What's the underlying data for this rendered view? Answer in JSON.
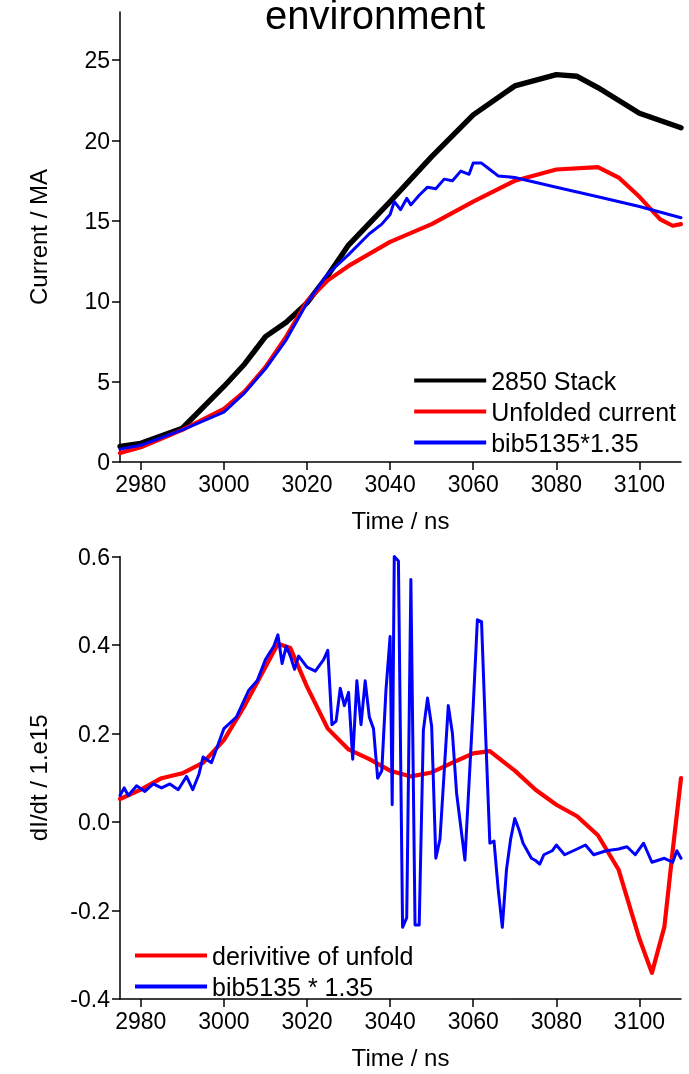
{
  "chart_data": [
    {
      "type": "line",
      "title": "environment",
      "xlabel": "Time / ns",
      "ylabel": "Current / MA",
      "xlim": [
        2975,
        3110
      ],
      "xticks": [
        2980,
        3000,
        3020,
        3040,
        3060,
        3080,
        3100
      ],
      "ylim": [
        0,
        28
      ],
      "yticks": [
        0,
        5,
        10,
        15,
        20,
        25
      ],
      "grid": false,
      "legend": "bottom right",
      "series": [
        {
          "name": "2850 Stack",
          "color": "#000000",
          "x": [
            2975,
            2980,
            2990,
            3000,
            3005,
            3010,
            3015,
            3020,
            3025,
            3030,
            3040,
            3050,
            3060,
            3070,
            3080,
            3085,
            3090,
            3100,
            3110
          ],
          "values": [
            0.97,
            1.16,
            2.1,
            4.7,
            6.1,
            7.8,
            8.7,
            9.9,
            11.6,
            13.5,
            16.2,
            19.0,
            21.6,
            23.4,
            24.1,
            24.0,
            23.3,
            21.7,
            20.8
          ]
        },
        {
          "name": "Unfolded current",
          "color": "#ff0000",
          "x": [
            2975,
            2980,
            2990,
            3000,
            3005,
            3010,
            3015,
            3020,
            3025,
            3030,
            3040,
            3050,
            3060,
            3070,
            3080,
            3090,
            3095,
            3100,
            3105,
            3108,
            3110
          ],
          "values": [
            0.56,
            0.92,
            2.0,
            3.3,
            4.4,
            5.9,
            7.8,
            10.0,
            11.3,
            12.2,
            13.7,
            14.8,
            16.2,
            17.5,
            18.2,
            18.35,
            17.7,
            16.5,
            15.1,
            14.7,
            14.8
          ]
        },
        {
          "name": "bib5135*1.35",
          "color": "#0000ff",
          "x": [
            2975,
            2980,
            2990,
            3000,
            3005,
            3010,
            3015,
            3020,
            3025,
            3030,
            3035,
            3038,
            3040,
            3041,
            3042.5,
            3044,
            3045,
            3047,
            3049,
            3051,
            3053,
            3055,
            3057,
            3059,
            3060,
            3062,
            3064,
            3066,
            3070,
            3080,
            3090,
            3100,
            3110
          ],
          "values": [
            0.8,
            1.04,
            2.0,
            3.1,
            4.3,
            5.8,
            7.6,
            9.9,
            11.7,
            12.9,
            14.2,
            14.8,
            15.4,
            16.2,
            15.7,
            16.4,
            16.0,
            16.6,
            17.1,
            17.0,
            17.6,
            17.5,
            18.1,
            17.9,
            18.6,
            18.6,
            18.2,
            17.8,
            17.7,
            17.1,
            16.5,
            15.9,
            15.2
          ]
        }
      ]
    },
    {
      "type": "line",
      "xlabel": "Time / ns",
      "ylabel": "dI/dt / 1.e15",
      "xlim": [
        2975,
        3110
      ],
      "xticks": [
        2980,
        3000,
        3020,
        3040,
        3060,
        3080,
        3100
      ],
      "ylim": [
        -0.4,
        0.6
      ],
      "yticks": [
        -0.4,
        -0.2,
        {
          "value": 0,
          "label": "0.0"
        },
        0.2,
        0.4,
        0.6
      ],
      "grid": false,
      "legend": "bottom left",
      "series": [
        {
          "name": "derivitive of unfold",
          "color": "#ff0000",
          "x": [
            2975,
            2980,
            2985,
            2990,
            2995,
            3000,
            3005,
            3010,
            3013,
            3016,
            3020,
            3025,
            3030,
            3035,
            3040,
            3045,
            3050,
            3055,
            3060,
            3064,
            3070,
            3075,
            3080,
            3085,
            3090,
            3095,
            3100,
            3103,
            3106,
            3108,
            3110
          ],
          "values": [
            0.052,
            0.073,
            0.099,
            0.11,
            0.134,
            0.185,
            0.263,
            0.35,
            0.403,
            0.393,
            0.306,
            0.211,
            0.164,
            0.142,
            0.116,
            0.103,
            0.112,
            0.134,
            0.155,
            0.16,
            0.116,
            0.073,
            0.039,
            0.013,
            -0.03,
            -0.108,
            -0.264,
            -0.341,
            -0.237,
            -0.065,
            0.099
          ]
        },
        {
          "name": "bib5135 * 1.35",
          "color": "#0000ff",
          "x": [
            2975,
            2976,
            2977,
            2979,
            2981,
            2983,
            2985,
            2987,
            2989,
            2991,
            2992.5,
            2994,
            2995,
            2997,
            3000,
            3003,
            3006,
            3008,
            3010,
            3012,
            3013,
            3014,
            3015,
            3016,
            3017,
            3018,
            3020,
            3022,
            3024,
            3025,
            3026,
            3027,
            3028,
            3029,
            3030,
            3031,
            3032,
            3033,
            3034,
            3035,
            3036,
            3037,
            3038,
            3039,
            3040,
            3040.5,
            3041,
            3042,
            3043,
            3044,
            3045,
            3046,
            3047,
            3048,
            3049,
            3050,
            3051,
            3052,
            3054,
            3055,
            3056,
            3058,
            3060,
            3061,
            3062,
            3063,
            3064,
            3065,
            3066,
            3067,
            3068,
            3069,
            3070,
            3071,
            3072,
            3074,
            3075,
            3076,
            3077,
            3079,
            3080,
            3082,
            3085,
            3087,
            3089,
            3092,
            3095,
            3097,
            3099,
            3101,
            3103,
            3106,
            3108,
            3109,
            3110
          ],
          "values": [
            0.06,
            0.077,
            0.06,
            0.082,
            0.069,
            0.086,
            0.077,
            0.086,
            0.073,
            0.103,
            0.073,
            0.108,
            0.147,
            0.134,
            0.211,
            0.237,
            0.298,
            0.319,
            0.367,
            0.397,
            0.423,
            0.358,
            0.397,
            0.375,
            0.345,
            0.375,
            0.35,
            0.341,
            0.367,
            0.388,
            0.22,
            0.228,
            0.302,
            0.263,
            0.293,
            0.142,
            0.319,
            0.22,
            0.319,
            0.237,
            0.211,
            0.099,
            0.116,
            0.298,
            0.419,
            0.039,
            0.6,
            0.59,
            -0.238,
            -0.216,
            0.548,
            -0.233,
            -0.233,
            0.207,
            0.28,
            0.216,
            -0.082,
            -0.039,
            0.263,
            0.2,
            0.065,
            -0.086,
            0.263,
            0.457,
            0.453,
            0.194,
            -0.048,
            -0.043,
            -0.151,
            -0.238,
            -0.108,
            -0.039,
            0.008,
            -0.017,
            -0.048,
            -0.082,
            -0.087,
            -0.095,
            -0.074,
            -0.065,
            -0.052,
            -0.074,
            -0.061,
            -0.052,
            -0.074,
            -0.065,
            -0.061,
            -0.056,
            -0.074,
            -0.048,
            -0.091,
            -0.082,
            -0.091,
            -0.065,
            -0.082
          ]
        }
      ]
    }
  ]
}
